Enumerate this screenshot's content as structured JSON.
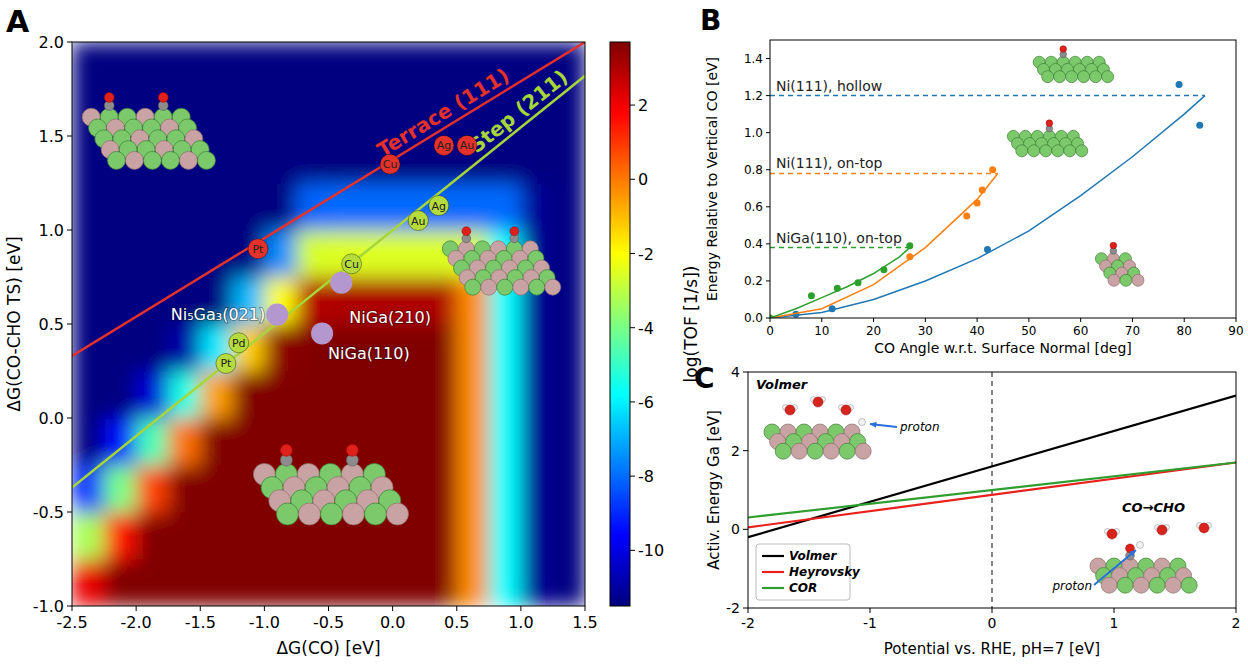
{
  "chart_data": [
    {
      "panel": "A",
      "type": "heatmap",
      "xlabel": "ΔG(CO) [eV]",
      "ylabel": "ΔG(CO-CHO TS) [eV]",
      "xlim": [
        -2.5,
        1.5
      ],
      "ylim": [
        -1.0,
        2.0
      ],
      "xticks": [
        -2.5,
        {
          "value": -2,
          "label": "-2.0"
        },
        -1.5,
        {
          "value": -1,
          "label": "-1.0"
        },
        -0.5,
        {
          "value": 0,
          "label": "0.0"
        },
        0.5,
        {
          "value": 1,
          "label": "1.0"
        },
        1.5
      ],
      "yticks": [
        {
          "value": -1,
          "label": "-1.0"
        },
        -0.5,
        {
          "value": 0,
          "label": "0.0"
        },
        0.5,
        {
          "value": 1,
          "label": "1.0"
        },
        1.5,
        {
          "value": 2,
          "label": "2.0"
        }
      ],
      "heatmap": {
        "x": [
          -2.375,
          -2.125,
          -1.875,
          -1.625,
          -1.375,
          -1.125,
          -0.875,
          -0.625,
          -0.375,
          -0.125,
          0.125,
          0.375,
          0.625,
          0.875,
          1.125,
          1.375
        ],
        "y": [
          -0.875,
          -0.625,
          -0.375,
          -0.125,
          0.125,
          0.375,
          0.625,
          0.875,
          1.125,
          1.375,
          1.625,
          1.875
        ],
        "values": [
          [
            2.1,
            3.7,
            3.7,
            3.7,
            3.7,
            3.7,
            3.7,
            3.7,
            3.7,
            3.7,
            3.7,
            3.7,
            -0.3,
            -5.8,
            -11.2,
            -11.5
          ],
          [
            -3.3,
            1.5,
            3.7,
            3.7,
            3.7,
            3.7,
            3.7,
            3.7,
            3.7,
            3.7,
            3.7,
            3.7,
            -0.3,
            -5.8,
            -11.2,
            -11.5
          ],
          [
            -8.9,
            -4.0,
            0.8,
            3.7,
            3.7,
            3.7,
            3.7,
            3.7,
            3.7,
            3.7,
            3.7,
            3.7,
            -0.3,
            -5.8,
            -11.2,
            -11.5
          ],
          [
            -11.5,
            -9.5,
            -4.7,
            0.1,
            3.7,
            3.7,
            3.7,
            3.7,
            3.7,
            3.7,
            3.7,
            3.7,
            -0.3,
            -5.8,
            -11.2,
            -11.5
          ],
          [
            -11.5,
            -11.5,
            -10.2,
            -5.4,
            -0.6,
            3.7,
            3.7,
            3.7,
            3.7,
            3.7,
            3.7,
            3.7,
            -0.3,
            -5.8,
            -11.2,
            -11.5
          ],
          [
            -11.5,
            -11.5,
            -11.5,
            -10.9,
            -6.1,
            -1.3,
            3.5,
            3.7,
            3.7,
            3.7,
            3.7,
            3.7,
            -0.3,
            -5.8,
            -11.2,
            -11.5
          ],
          [
            -11.5,
            -11.5,
            -11.5,
            -11.5,
            -11.5,
            -6.8,
            -2.0,
            2.9,
            3.0,
            3.0,
            3.0,
            3.0,
            -0.3,
            -5.8,
            -11.2,
            -11.5
          ],
          [
            -11.5,
            -11.5,
            -11.5,
            -11.5,
            -11.5,
            -11.5,
            -7.5,
            -2.6,
            -2.5,
            -2.5,
            -2.5,
            -2.5,
            -2.5,
            -5.8,
            -11.2,
            -11.5
          ],
          [
            -11.5,
            -11.5,
            -11.5,
            -11.5,
            -11.5,
            -11.5,
            -11.5,
            -8.1,
            -8.0,
            -8.0,
            -8.0,
            -8.0,
            -8.0,
            -8.0,
            -11.2,
            -11.5
          ],
          [
            -11.5,
            -11.5,
            -11.5,
            -11.5,
            -11.5,
            -11.5,
            -11.5,
            -11.5,
            -11.5,
            -11.5,
            -11.5,
            -11.5,
            -11.5,
            -11.5,
            -11.5,
            -11.5
          ],
          [
            -11.5,
            -11.5,
            -11.5,
            -11.5,
            -11.5,
            -11.5,
            -11.5,
            -11.5,
            -11.5,
            -11.5,
            -11.5,
            -11.5,
            -11.5,
            -11.5,
            -11.5,
            -11.5
          ],
          [
            -11.5,
            -11.5,
            -11.5,
            -11.5,
            -11.5,
            -11.5,
            -11.5,
            -11.5,
            -11.5,
            -11.5,
            -11.5,
            -11.5,
            -11.5,
            -11.5,
            -11.5,
            -11.5
          ]
        ]
      },
      "colorbar": {
        "label": "log(TOF [1/s])",
        "lim": [
          -11.5,
          3.7
        ],
        "ticks": [
          2,
          0,
          -2,
          -4,
          -6,
          -8,
          -10
        ]
      },
      "series": [
        {
          "name": "Terrace (111)",
          "type": "line",
          "color": "#e4312b",
          "x": [
            -2.5,
            1.5
          ],
          "values": [
            0.33,
            2.0
          ]
        },
        {
          "name": "Step (211)",
          "type": "line",
          "color": "#a6d63a",
          "x": [
            -2.5,
            1.5
          ],
          "values": [
            -0.37,
            1.82
          ]
        },
        {
          "type": "scatter",
          "color": "#e4312b",
          "labels": [
            "Pt",
            "Cu",
            "Ag",
            "Au"
          ],
          "x": [
            -1.05,
            -0.02,
            0.4,
            0.58
          ],
          "values": [
            0.9,
            1.35,
            1.45,
            1.45
          ]
        },
        {
          "type": "scatter",
          "color": "#b5dc3c",
          "labels": [
            "Pt",
            "Pd",
            "Cu",
            "Au",
            "Ag"
          ],
          "x": [
            -1.3,
            -1.2,
            -0.32,
            0.2,
            0.36
          ],
          "values": [
            0.29,
            0.4,
            0.82,
            1.05,
            1.13
          ]
        },
        {
          "type": "scatter",
          "color": "#b497cf",
          "labels": [
            "Ni₅Ga₃(021)",
            "NiGa(210)",
            "NiGa(110)"
          ],
          "x": [
            -0.9,
            -0.4,
            -0.55
          ],
          "values": [
            0.55,
            0.72,
            0.45
          ]
        }
      ]
    },
    {
      "panel": "B",
      "type": "scatter",
      "xlabel": "CO Angle w.r.t. Surface Normal [deg]",
      "ylabel": "Energy Relative to Vertical CO [eV]",
      "xlim": [
        0,
        90
      ],
      "ylim": [
        0,
        1.5
      ],
      "xticks": [
        0,
        10,
        20,
        30,
        40,
        50,
        60,
        70,
        80,
        90
      ],
      "yticks": [
        {
          "value": 0,
          "label": "0.0"
        },
        0.2,
        0.4,
        0.6,
        0.8,
        {
          "value": 1,
          "label": "1.0"
        },
        1.2,
        1.4
      ],
      "series": [
        {
          "name": "Ni(111), hollow",
          "color": "#1f77b4",
          "x": [
            5,
            12,
            42,
            79,
            83
          ],
          "values": [
            0.02,
            0.05,
            0.37,
            1.26,
            1.04
          ],
          "fit": {
            "x": [
              0,
              10,
              20,
              30,
              40,
              50,
              60,
              70,
              80,
              84
            ],
            "values": [
              0,
              0.03,
              0.1,
              0.2,
              0.32,
              0.47,
              0.66,
              0.87,
              1.1,
              1.2
            ]
          },
          "level": 1.2
        },
        {
          "name": "Ni(111), on-top",
          "color": "#ff7f0e",
          "x": [
            27,
            38,
            40,
            41,
            43
          ],
          "values": [
            0.33,
            0.55,
            0.62,
            0.69,
            0.8
          ],
          "fit": {
            "x": [
              0,
              10,
              20,
              30,
              40,
              44
            ],
            "values": [
              0,
              0.05,
              0.18,
              0.38,
              0.64,
              0.78
            ]
          },
          "level": 0.78
        },
        {
          "name": "NiGa(110), on-top",
          "color": "#2ca02c",
          "x": [
            0,
            8,
            13,
            17,
            22,
            27
          ],
          "values": [
            0,
            0.12,
            0.16,
            0.19,
            0.26,
            0.39
          ],
          "fit": {
            "x": [
              0,
              5,
              10,
              15,
              20,
              25,
              27
            ],
            "values": [
              0,
              0.05,
              0.11,
              0.17,
              0.24,
              0.33,
              0.38
            ]
          },
          "level": 0.38
        }
      ]
    },
    {
      "panel": "C",
      "type": "line",
      "xlabel": "Potential vs. RHE, pH=7 [eV]",
      "ylabel": "Activ. Energy Ga [eV]",
      "xlim": [
        -2,
        2
      ],
      "ylim": [
        -2,
        4
      ],
      "xticks": [
        -2,
        -1,
        0,
        1,
        2
      ],
      "yticks": [
        -2,
        0,
        2,
        4
      ],
      "legend": "lower left",
      "vline": 0,
      "series": [
        {
          "name": "Volmer",
          "color": "#000000",
          "x": [
            -2,
            2
          ],
          "values": [
            -0.2,
            3.4
          ]
        },
        {
          "name": "Heyrovsky",
          "color": "#e8211c",
          "x": [
            -2,
            2
          ],
          "values": [
            0.05,
            1.7
          ]
        },
        {
          "name": "COR",
          "color": "#2e9e2e",
          "x": [
            -2,
            2
          ],
          "values": [
            0.3,
            1.7
          ]
        }
      ],
      "annotations": [
        {
          "text": "Volmer"
        },
        {
          "text": "proton"
        },
        {
          "text": "CO→CHO"
        },
        {
          "text": "proton"
        }
      ]
    }
  ]
}
